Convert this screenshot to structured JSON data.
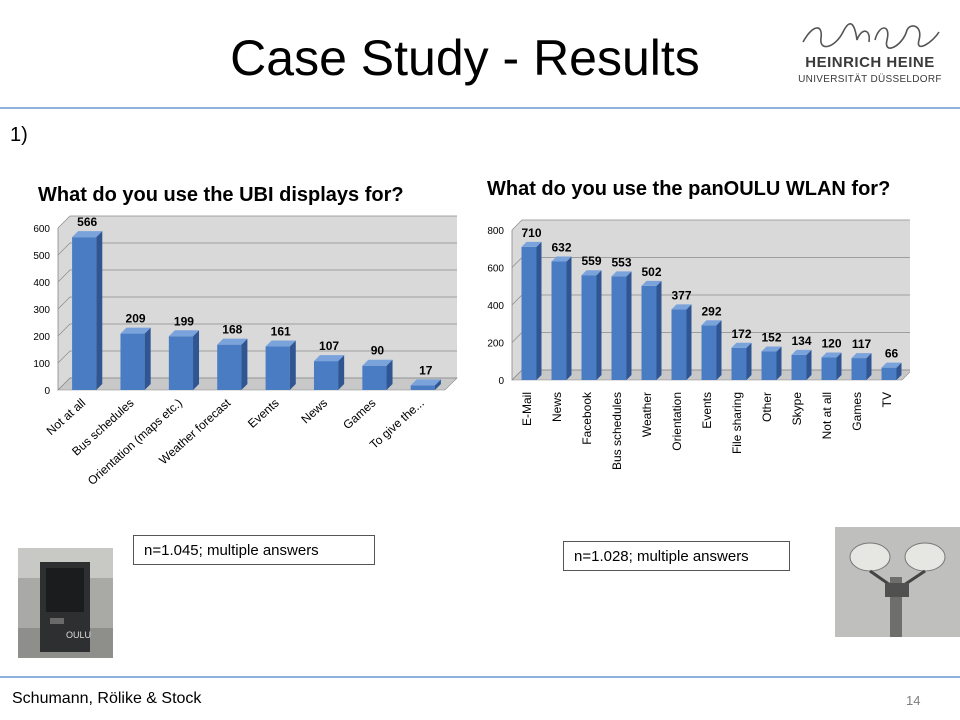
{
  "title": "Case Study - Results",
  "logo": {
    "line1": "HEINRICH HEINE",
    "line2": "UNIVERSITÄT DÜSSELDORF"
  },
  "section_number": "1)",
  "notes": {
    "left": "n=1.045; multiple answers",
    "right": "n=1.028; multiple answers"
  },
  "footer": {
    "authors": "Schumann, Rölike & Stock",
    "page": "14"
  },
  "colors": {
    "bar": "#4a7cc4",
    "bar_side": "#2f5592",
    "bar_top": "#7aa3dc",
    "plot_bg": "#d9d9d9",
    "rule": "#8fb0d8"
  },
  "chart_data": [
    {
      "type": "bar",
      "title": "What do you use the UBI displays for?",
      "categories": [
        "Not at all",
        "Bus schedules",
        "Orientation (maps etc.)",
        "Weather forecast",
        "Events",
        "News",
        "Games",
        "To give the..."
      ],
      "values": [
        566,
        209,
        199,
        168,
        161,
        107,
        90,
        17
      ],
      "data_labels": [
        "566",
        "209",
        "199",
        "168",
        "161",
        "107",
        "90",
        "17"
      ],
      "yticks": [
        "0",
        "100",
        "200",
        "300",
        "400",
        "500",
        "600"
      ],
      "ylim": [
        0,
        600
      ],
      "grid": true
    },
    {
      "type": "bar",
      "title": "What do you use the panOULU WLAN for?",
      "categories": [
        "E-Mail",
        "News",
        "Facebook",
        "Bus schedules",
        "Weather",
        "Orientation",
        "Events",
        "File sharing",
        "Other",
        "Skype",
        "Not at all",
        "Games",
        "TV"
      ],
      "values": [
        710,
        632,
        559,
        553,
        502,
        377,
        292,
        172,
        152,
        134,
        120,
        117,
        66
      ],
      "data_labels": [
        "710",
        "632",
        "559",
        "553",
        "502",
        "377",
        "292",
        "172",
        "152",
        "134",
        "120",
        "117",
        "66"
      ],
      "yticks": [
        "0",
        "200",
        "400",
        "600",
        "800"
      ],
      "ylim": [
        0,
        800
      ],
      "grid": true
    }
  ]
}
